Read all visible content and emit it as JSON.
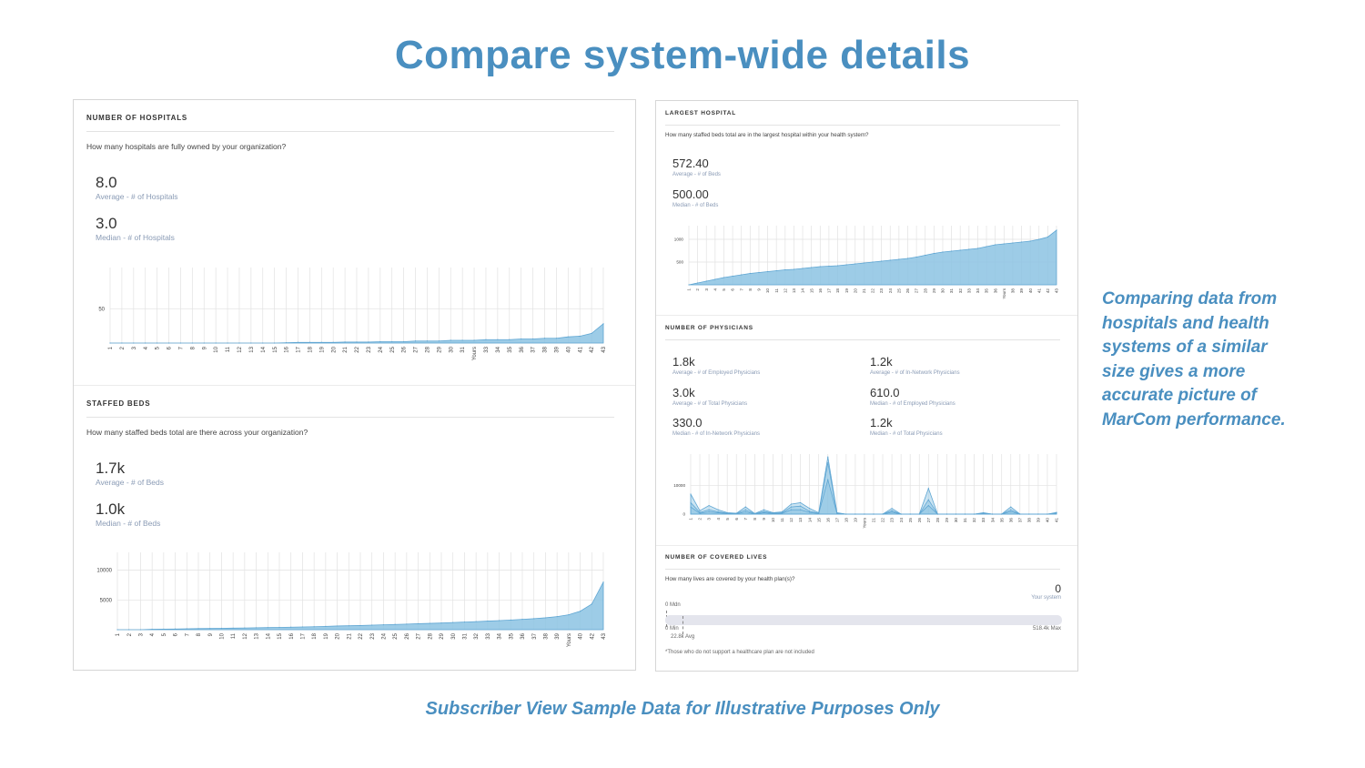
{
  "page": {
    "title": "Compare system-wide details",
    "side_note": "Comparing data from hospitals and health systems of a similar size gives a more accurate picture of MarCom performance.",
    "footer": "Subscriber View Sample Data for Illustrative Purposes Only"
  },
  "colors": {
    "accent": "#4a8fc0",
    "area_fill": "#8cc3e3",
    "area_stroke": "#5fa6d3",
    "muted_label": "#8a9bb5"
  },
  "hospitals": {
    "title": "NUMBER OF HOSPITALS",
    "question": "How many hospitals are fully owned by your organization?",
    "stats": [
      {
        "value": "8.0",
        "label": "Average - # of Hospitals"
      },
      {
        "value": "3.0",
        "label": "Median - # of Hospitals"
      }
    ]
  },
  "beds": {
    "title": "STAFFED BEDS",
    "question": "How many staffed beds total are there across your organization?",
    "stats": [
      {
        "value": "1.7k",
        "label": "Average - # of Beds"
      },
      {
        "value": "1.0k",
        "label": "Median - # of Beds"
      }
    ]
  },
  "largest": {
    "title": "LARGEST HOSPITAL",
    "question": "How many staffed beds total are in the largest hospital within your health system?",
    "stats": [
      {
        "value": "572.40",
        "label": "Average - # of Beds"
      },
      {
        "value": "500.00",
        "label": "Median - # of Beds"
      }
    ]
  },
  "physicians": {
    "title": "NUMBER OF PHYSICIANS",
    "stats": [
      {
        "value": "1.8k",
        "label": "Average - # of Employed Physicians"
      },
      {
        "value": "1.2k",
        "label": "Average - # of In-Network Physicians"
      },
      {
        "value": "3.0k",
        "label": "Average - # of Total Physicians"
      },
      {
        "value": "610.0",
        "label": "Median - # of Employed Physicians"
      },
      {
        "value": "330.0",
        "label": "Median - # of In-Network Physicians"
      },
      {
        "value": "1.2k",
        "label": "Median - # of Total Physicians"
      }
    ]
  },
  "covered": {
    "title": "NUMBER OF COVERED LIVES",
    "question": "How many lives are covered by your health plan(s)?",
    "your_value": "0",
    "your_label": "Your system",
    "mdn_label": "0 Mdn",
    "min_label": "0 Min",
    "avg_label": "22.8k Avg",
    "max_label": "518.4k Max",
    "footnote": "*Those who do not support a healthcare plan are not included"
  },
  "chart_data": [
    {
      "type": "area",
      "title": "NUMBER OF HOSPITALS",
      "categories": [
        "1",
        "2",
        "3",
        "4",
        "5",
        "6",
        "7",
        "8",
        "9",
        "10",
        "11",
        "12",
        "13",
        "14",
        "15",
        "16",
        "17",
        "18",
        "19",
        "20",
        "21",
        "22",
        "23",
        "24",
        "25",
        "26",
        "27",
        "28",
        "29",
        "30",
        "31",
        "Yours",
        "33",
        "34",
        "35",
        "36",
        "37",
        "38",
        "39",
        "40",
        "41",
        "42",
        "43"
      ],
      "values": [
        0,
        0,
        0,
        0,
        0,
        0,
        0,
        0,
        0,
        0,
        0,
        0,
        0,
        0,
        0,
        0.5,
        1,
        1,
        1,
        1,
        1.5,
        1.5,
        1.5,
        2,
        2,
        2,
        3,
        3,
        3,
        4,
        4,
        4,
        5,
        5,
        5,
        6,
        6,
        7,
        7,
        9,
        10,
        14,
        28
      ],
      "yticks": [
        50
      ],
      "ylim": [
        0,
        110
      ],
      "grid": true
    },
    {
      "type": "area",
      "title": "STAFFED BEDS",
      "categories": [
        "1",
        "2",
        "3",
        "4",
        "5",
        "6",
        "7",
        "8",
        "9",
        "10",
        "11",
        "12",
        "13",
        "14",
        "15",
        "16",
        "17",
        "18",
        "19",
        "20",
        "21",
        "22",
        "23",
        "24",
        "25",
        "26",
        "27",
        "28",
        "29",
        "30",
        "31",
        "32",
        "33",
        "34",
        "35",
        "36",
        "37",
        "38",
        "39",
        "Yours",
        "40",
        "42",
        "43"
      ],
      "values": [
        0,
        0,
        0,
        80,
        100,
        120,
        150,
        180,
        200,
        230,
        260,
        290,
        320,
        350,
        380,
        420,
        460,
        500,
        560,
        620,
        660,
        700,
        760,
        820,
        880,
        940,
        1000,
        1060,
        1120,
        1200,
        1280,
        1360,
        1440,
        1530,
        1620,
        1740,
        1860,
        2000,
        2200,
        2500,
        3100,
        4300,
        8000
      ],
      "yticks": [
        5000,
        10000
      ],
      "ylim": [
        0,
        13000
      ],
      "grid": true
    },
    {
      "type": "area",
      "title": "LARGEST HOSPITAL",
      "categories": [
        "1",
        "2",
        "3",
        "4",
        "5",
        "6",
        "7",
        "8",
        "9",
        "10",
        "11",
        "12",
        "13",
        "14",
        "15",
        "16",
        "17",
        "18",
        "19",
        "20",
        "21",
        "22",
        "23",
        "24",
        "25",
        "26",
        "27",
        "28",
        "29",
        "30",
        "31",
        "32",
        "33",
        "34",
        "35",
        "36",
        "Yours",
        "38",
        "39",
        "40",
        "41",
        "42",
        "43"
      ],
      "values": [
        0,
        40,
        80,
        120,
        160,
        190,
        220,
        250,
        270,
        290,
        310,
        330,
        340,
        360,
        380,
        400,
        410,
        420,
        440,
        460,
        480,
        500,
        520,
        540,
        560,
        580,
        610,
        650,
        690,
        720,
        740,
        760,
        780,
        800,
        840,
        880,
        900,
        920,
        940,
        960,
        1000,
        1050,
        1200
      ],
      "yticks": [
        500,
        1000
      ],
      "ylim": [
        0,
        1300
      ],
      "grid": true
    },
    {
      "type": "area",
      "title": "NUMBER OF PHYSICIANS",
      "series_note": "overlapping series: employed, in-network, total",
      "categories": [
        "1",
        "2",
        "3",
        "4",
        "5",
        "6",
        "7",
        "8",
        "9",
        "10",
        "11",
        "12",
        "13",
        "14",
        "15",
        "16",
        "17",
        "18",
        "19",
        "Yours",
        "21",
        "22",
        "23",
        "24",
        "25",
        "26",
        "27",
        "28",
        "29",
        "30",
        "31",
        "32",
        "33",
        "34",
        "35",
        "36",
        "37",
        "38",
        "39",
        "40",
        "41"
      ],
      "series": [
        {
          "values": [
            7000,
            1200,
            3000,
            1500,
            500,
            300,
            2500,
            200,
            1500,
            500,
            800,
            3500,
            4000,
            2000,
            500,
            20000,
            500,
            0,
            0,
            0,
            0,
            0,
            2000,
            0,
            0,
            0,
            9000,
            0,
            0,
            0,
            0,
            0,
            500,
            0,
            0,
            2500,
            0,
            0,
            0,
            0,
            600
          ]
        },
        {
          "values": [
            4000,
            600,
            1500,
            800,
            300,
            200,
            1500,
            100,
            900,
            300,
            500,
            2500,
            2800,
            1000,
            300,
            18000,
            300,
            0,
            0,
            0,
            0,
            0,
            1200,
            0,
            0,
            0,
            5000,
            0,
            0,
            0,
            0,
            0,
            300,
            0,
            0,
            1500,
            0,
            0,
            0,
            0,
            400
          ]
        },
        {
          "values": [
            2500,
            300,
            800,
            500,
            200,
            100,
            800,
            50,
            500,
            200,
            300,
            1500,
            1500,
            600,
            200,
            12000,
            200,
            0,
            0,
            0,
            0,
            0,
            700,
            0,
            0,
            0,
            3000,
            0,
            0,
            0,
            0,
            0,
            200,
            0,
            0,
            900,
            0,
            0,
            0,
            0,
            200
          ]
        }
      ],
      "yticks": [
        0,
        10000
      ],
      "ylim": [
        0,
        21000
      ],
      "grid": true
    }
  ]
}
